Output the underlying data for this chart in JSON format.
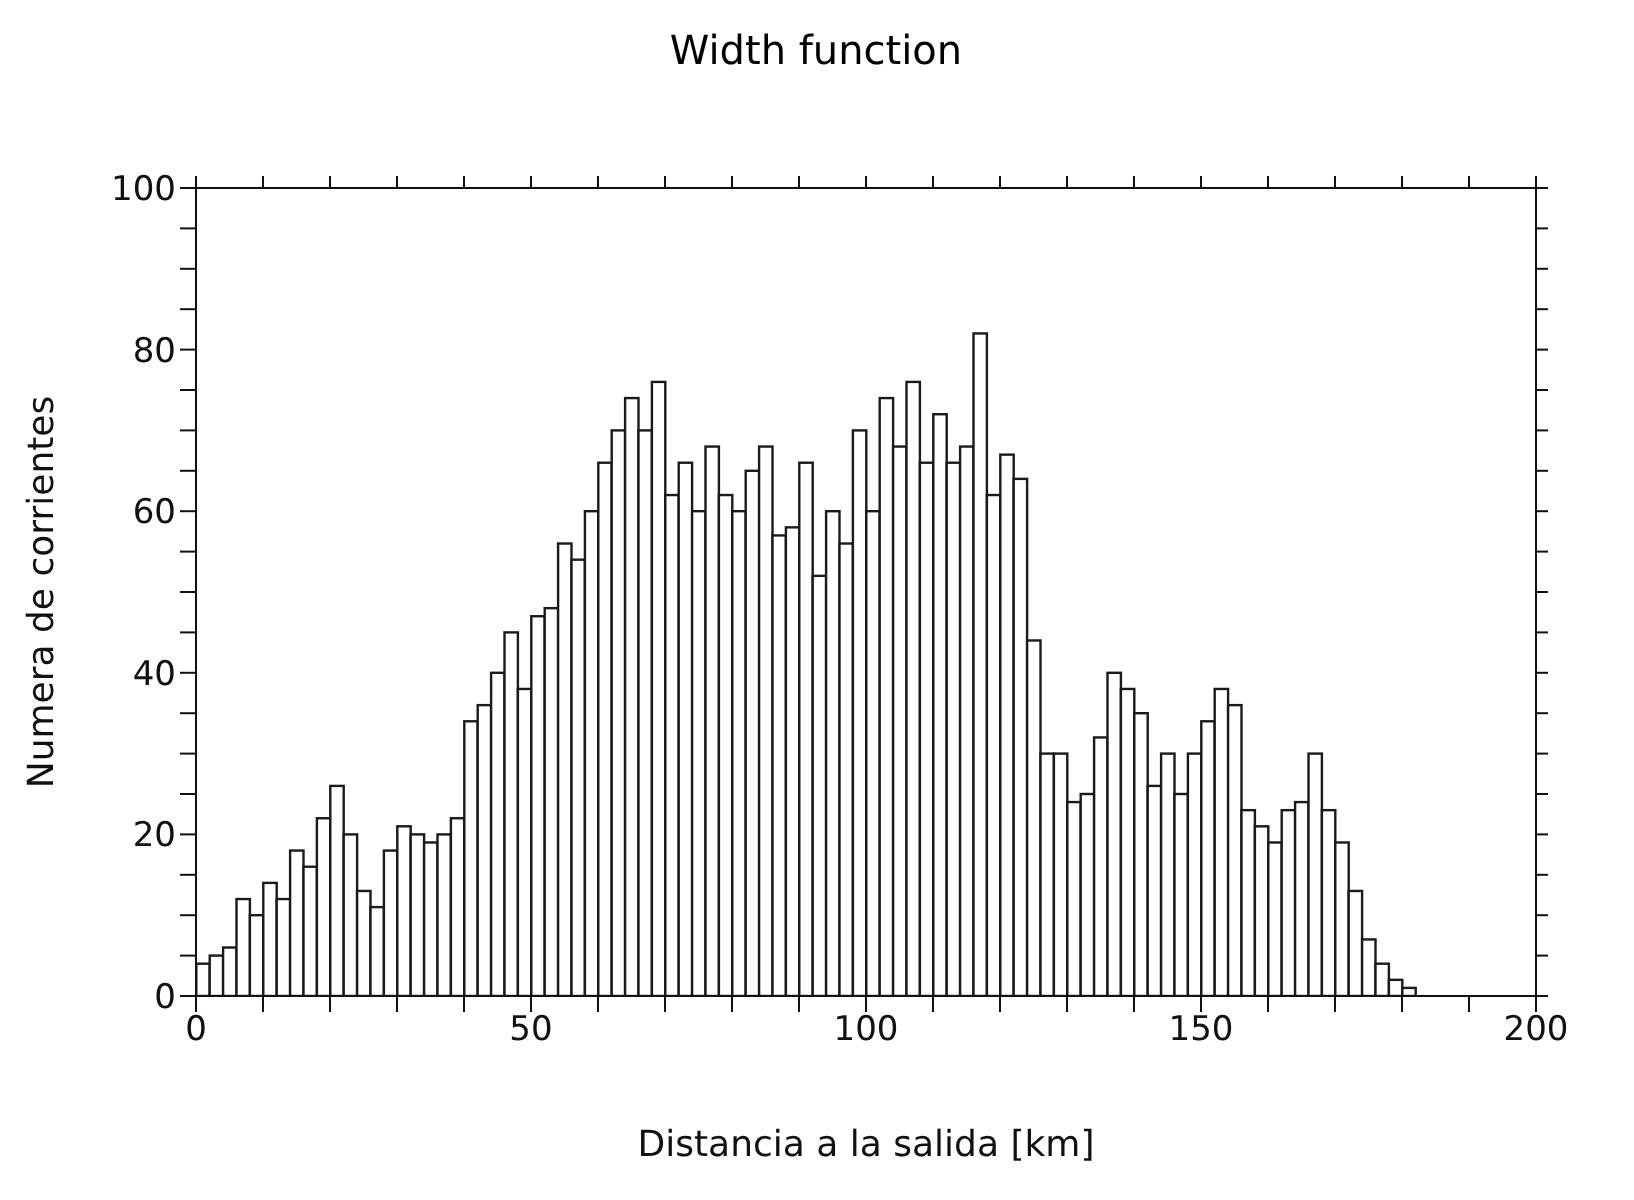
{
  "chart_data": {
    "type": "histogram",
    "title": "Width function",
    "xlabel": "Distancia a la salida [km]",
    "ylabel": "Numera de corrientes",
    "bins": [
      0,
      2,
      4,
      6,
      8,
      10,
      12,
      14,
      16,
      18,
      20,
      22,
      24,
      26,
      28,
      30,
      32,
      34,
      36,
      38,
      40,
      42,
      44,
      46,
      48,
      50,
      52,
      54,
      56,
      58,
      60,
      62,
      64,
      66,
      68,
      70,
      72,
      74,
      76,
      78,
      80,
      82,
      84,
      86,
      88,
      90,
      92,
      94,
      96,
      98,
      100,
      102,
      104,
      106,
      108,
      110,
      112,
      114,
      116,
      118,
      120,
      122,
      124,
      126,
      128,
      130,
      132,
      134,
      136,
      138,
      140,
      142,
      144,
      146,
      148,
      150,
      152,
      154,
      156,
      158,
      160,
      162,
      164,
      166,
      168,
      170,
      172,
      174,
      176,
      178,
      180,
      182
    ],
    "values": [
      4,
      5,
      6,
      12,
      10,
      14,
      12,
      18,
      16,
      22,
      26,
      20,
      13,
      11,
      18,
      21,
      20,
      19,
      20,
      22,
      34,
      36,
      40,
      45,
      38,
      47,
      48,
      56,
      54,
      60,
      66,
      70,
      74,
      70,
      76,
      62,
      66,
      60,
      68,
      62,
      60,
      65,
      68,
      57,
      58,
      66,
      52,
      60,
      56,
      70,
      60,
      74,
      68,
      76,
      66,
      72,
      66,
      68,
      82,
      62,
      67,
      64,
      44,
      30,
      30,
      24,
      25,
      32,
      40,
      38,
      35,
      26,
      30,
      25,
      30,
      34,
      38,
      36,
      23,
      21,
      19,
      23,
      24,
      30,
      23,
      19,
      13,
      7,
      4,
      2,
      1
    ],
    "color": "#1a1a1a",
    "xlim": [
      0,
      200
    ],
    "xticks": [
      0,
      {
        "value": 10,
        "label": null
      },
      {
        "value": 20,
        "label": null
      },
      {
        "value": 30,
        "label": null
      },
      {
        "value": 40,
        "label": null
      },
      50,
      {
        "value": 60,
        "label": null
      },
      {
        "value": 70,
        "label": null
      },
      {
        "value": 80,
        "label": null
      },
      {
        "value": 90,
        "label": null
      },
      100,
      {
        "value": 110,
        "label": null
      },
      {
        "value": 120,
        "label": null
      },
      {
        "value": 130,
        "label": null
      },
      {
        "value": 140,
        "label": null
      },
      150,
      {
        "value": 160,
        "label": null
      },
      {
        "value": 170,
        "label": null
      },
      {
        "value": 180,
        "label": null
      },
      {
        "value": 190,
        "label": null
      },
      200
    ],
    "ylim": [
      0,
      100
    ],
    "yticks": [
      0,
      {
        "value": 5,
        "label": null
      },
      {
        "value": 10,
        "label": null
      },
      {
        "value": 15,
        "label": null
      },
      20,
      {
        "value": 25,
        "label": null
      },
      {
        "value": 30,
        "label": null
      },
      {
        "value": 35,
        "label": null
      },
      40,
      {
        "value": 45,
        "label": null
      },
      {
        "value": 50,
        "label": null
      },
      {
        "value": 55,
        "label": null
      },
      60,
      {
        "value": 65,
        "label": null
      },
      {
        "value": 70,
        "label": null
      },
      {
        "value": 75,
        "label": null
      },
      80,
      {
        "value": 85,
        "label": null
      },
      {
        "value": 90,
        "label": null
      },
      {
        "value": 95,
        "label": null
      },
      100
    ]
  }
}
